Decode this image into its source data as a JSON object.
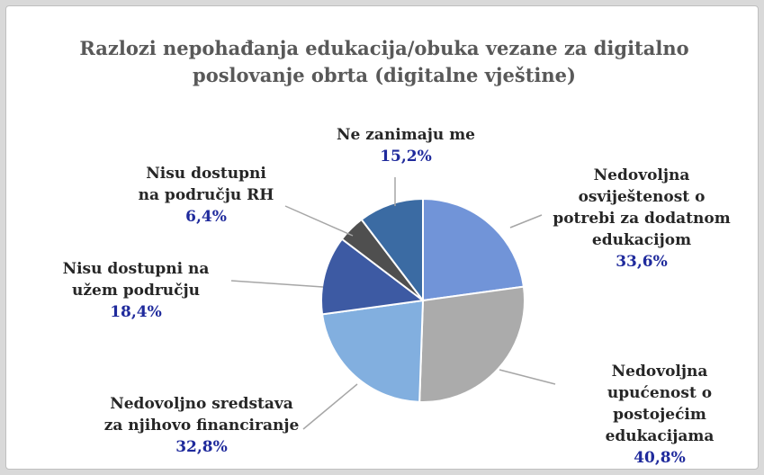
{
  "chart_data": {
    "type": "pie",
    "title": "Razlozi nepohađanja edukacija/obuka vezane za digitalno poslovanje obrta (digitalne vještine)",
    "categories": [
      "Nedovoljna osviještenost o potrebi za dodatnom edukacijom",
      "Nedovoljna upućenost o postojećim edukacijama",
      "Nedovoljno sredstava za njihovo financiranje",
      "Nisu dostupni na užem području",
      "Nisu dostupni na području RH",
      "Ne zanimaju me"
    ],
    "values": [
      33.6,
      40.8,
      32.8,
      18.4,
      6.4,
      15.2
    ],
    "value_labels": [
      "33,6%",
      "40,8%",
      "32,8%",
      "18,4%",
      "6,4%",
      "15,2%"
    ],
    "colors": [
      "#7194d8",
      "#ababab",
      "#82afdf",
      "#3d5aa3",
      "#4f4f4f",
      "#3b6ba3"
    ]
  }
}
